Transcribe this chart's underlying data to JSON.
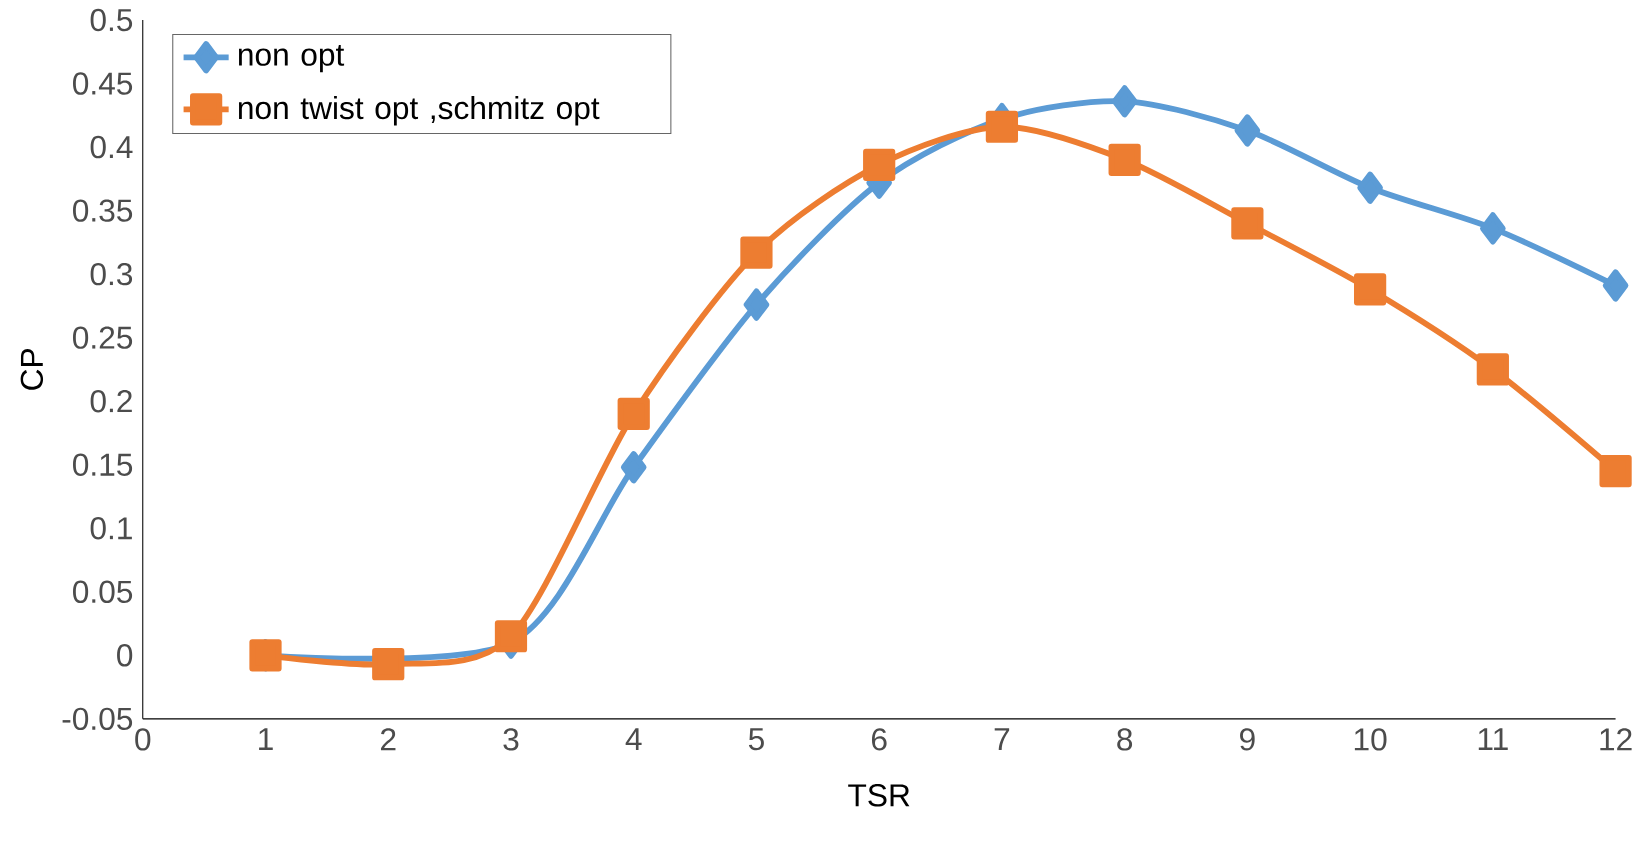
{
  "chart_data": {
    "type": "line",
    "xlabel": "TSR",
    "ylabel": "CP",
    "x": [
      1,
      2,
      3,
      4,
      5,
      6,
      7,
      8,
      9,
      10,
      11,
      12
    ],
    "series": [
      {
        "name": "non opt",
        "color": "#5b9bd5",
        "marker": "diamond",
        "values": [
          0,
          null,
          0.01,
          0.148,
          0.276,
          0.372,
          0.422,
          0.436,
          0.413,
          0.368,
          0.336,
          0.291
        ]
      },
      {
        "name": "non twist opt ,schmitz opt",
        "color": "#ed7d31",
        "marker": "square",
        "values": [
          0,
          -0.007,
          0.015,
          0.19,
          0.317,
          0.386,
          0.416,
          0.39,
          0.34,
          0.288,
          0.225,
          0.145
        ]
      }
    ],
    "xlim": [
      0,
      12
    ],
    "xticks": [
      0,
      1,
      2,
      3,
      4,
      5,
      6,
      7,
      8,
      9,
      10,
      11,
      12
    ],
    "ylim": [
      -0.05,
      0.5
    ],
    "yticks": [
      -0.05,
      0,
      0.05,
      0.1,
      0.15,
      0.2,
      0.25,
      0.3,
      0.35,
      0.4,
      0.45,
      0.5
    ],
    "legend": "top left",
    "grid": false
  }
}
